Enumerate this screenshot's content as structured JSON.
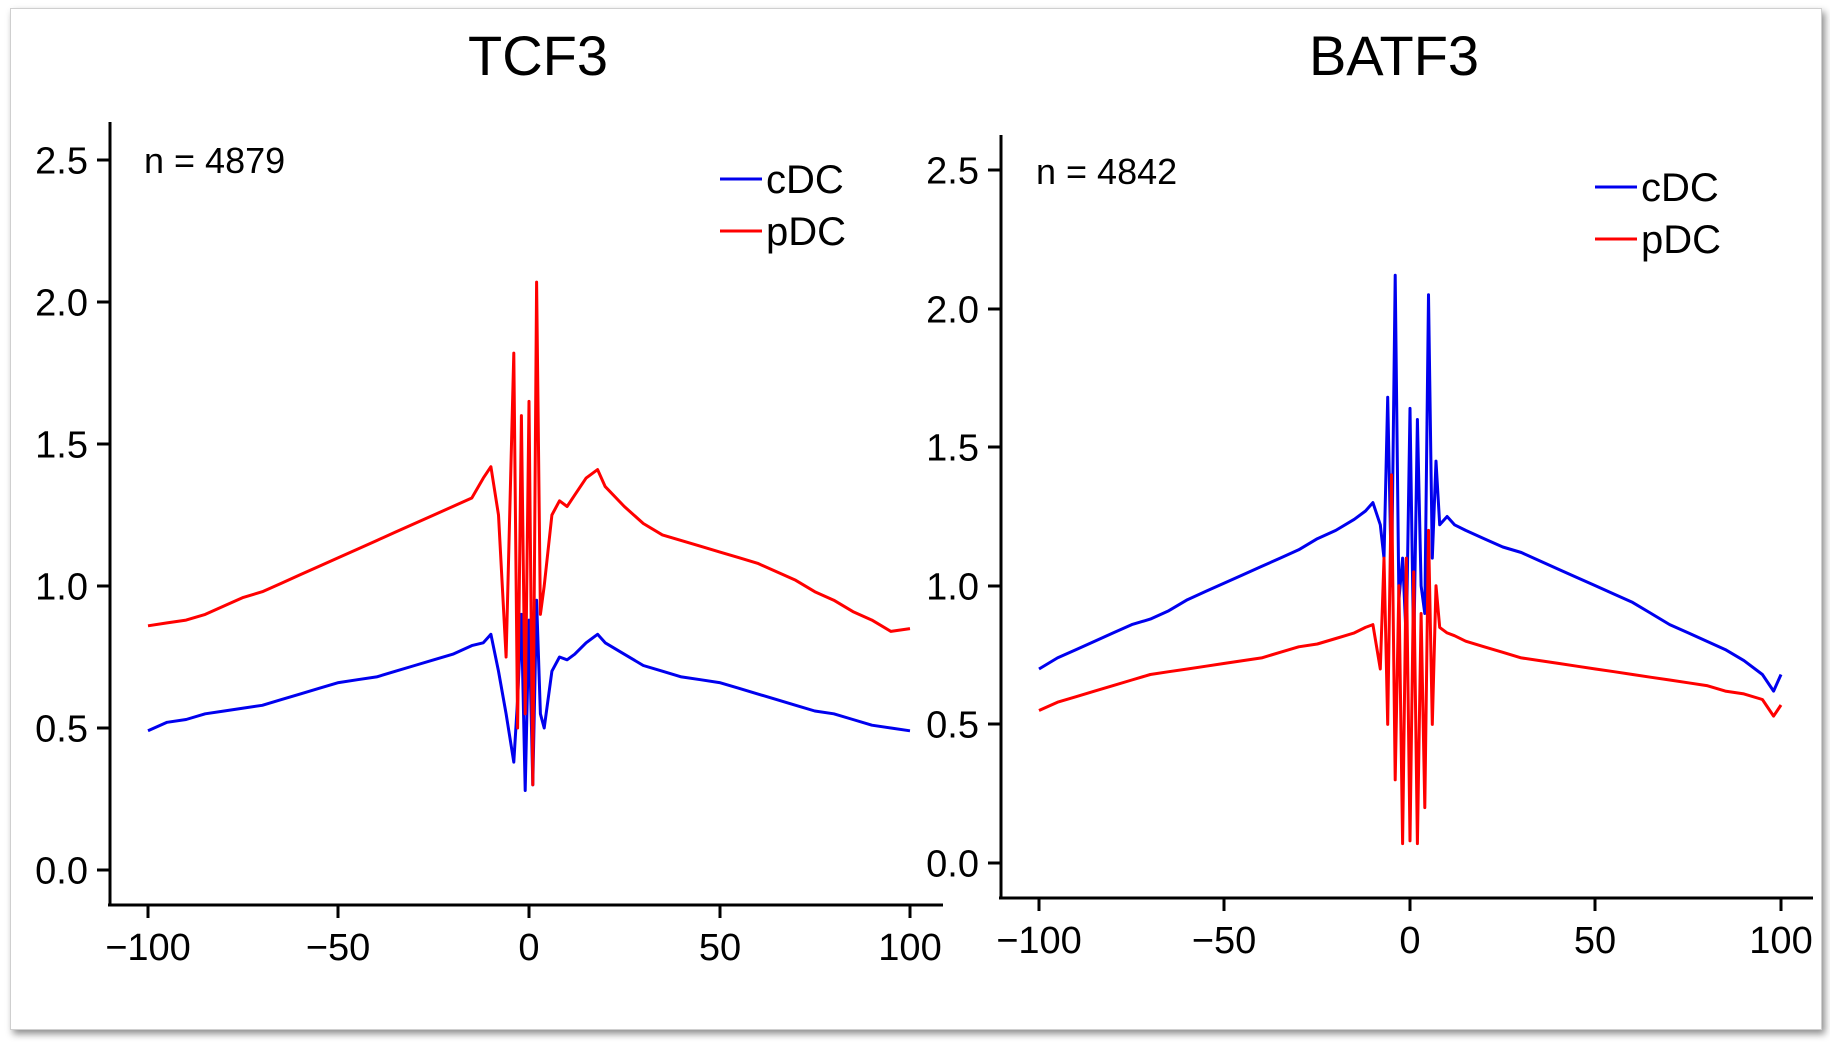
{
  "chart_data": [
    {
      "type": "line",
      "title": "TCF3",
      "annotation": "n = 4879",
      "xlabel": "",
      "ylabel": "",
      "xlim": [
        -100,
        100
      ],
      "ylim": [
        -0.12,
        2.6
      ],
      "x_ticks": [
        -100,
        -50,
        0,
        50,
        100
      ],
      "x_tick_labels": [
        "−100",
        "−50",
        "0",
        "50",
        "100"
      ],
      "y_ticks": [
        0.0,
        0.5,
        1.0,
        1.5,
        2.0,
        2.5
      ],
      "y_tick_labels": [
        "0.0",
        "0.5",
        "1.0",
        "1.5",
        "2.0",
        "2.5"
      ],
      "legend_position": "top-right",
      "grid": false,
      "series": [
        {
          "name": "cDC",
          "color": "#0000ee",
          "x": [
            -100,
            -95,
            -90,
            -85,
            -80,
            -75,
            -70,
            -65,
            -60,
            -55,
            -50,
            -45,
            -40,
            -35,
            -30,
            -25,
            -20,
            -15,
            -12,
            -10,
            -8,
            -6,
            -4,
            -3,
            -2,
            -1,
            0,
            1,
            2,
            3,
            4,
            6,
            8,
            10,
            12,
            15,
            18,
            20,
            25,
            30,
            35,
            40,
            45,
            50,
            55,
            60,
            65,
            70,
            75,
            80,
            85,
            90,
            95,
            100
          ],
          "y": [
            0.49,
            0.52,
            0.53,
            0.55,
            0.56,
            0.57,
            0.58,
            0.6,
            0.62,
            0.64,
            0.66,
            0.67,
            0.68,
            0.7,
            0.72,
            0.74,
            0.76,
            0.79,
            0.8,
            0.83,
            0.7,
            0.55,
            0.38,
            0.6,
            0.9,
            0.28,
            0.88,
            0.3,
            0.95,
            0.55,
            0.5,
            0.7,
            0.75,
            0.74,
            0.76,
            0.8,
            0.83,
            0.8,
            0.76,
            0.72,
            0.7,
            0.68,
            0.67,
            0.66,
            0.64,
            0.62,
            0.6,
            0.58,
            0.56,
            0.55,
            0.53,
            0.51,
            0.5,
            0.49
          ]
        },
        {
          "name": "pDC",
          "color": "#ff0000",
          "x": [
            -100,
            -95,
            -90,
            -85,
            -80,
            -75,
            -70,
            -65,
            -60,
            -55,
            -50,
            -45,
            -40,
            -35,
            -30,
            -25,
            -20,
            -15,
            -12,
            -10,
            -8,
            -6,
            -4,
            -3,
            -2,
            -1,
            0,
            1,
            2,
            3,
            4,
            6,
            8,
            10,
            12,
            15,
            18,
            20,
            25,
            30,
            35,
            40,
            45,
            50,
            55,
            60,
            65,
            70,
            75,
            80,
            85,
            90,
            95,
            100
          ],
          "y": [
            0.86,
            0.87,
            0.88,
            0.9,
            0.93,
            0.96,
            0.98,
            1.01,
            1.04,
            1.07,
            1.1,
            1.13,
            1.16,
            1.19,
            1.22,
            1.25,
            1.28,
            1.31,
            1.38,
            1.42,
            1.25,
            0.75,
            1.82,
            0.5,
            1.6,
            0.55,
            1.65,
            0.3,
            2.07,
            0.9,
            1.0,
            1.25,
            1.3,
            1.28,
            1.32,
            1.38,
            1.41,
            1.35,
            1.28,
            1.22,
            1.18,
            1.16,
            1.14,
            1.12,
            1.1,
            1.08,
            1.05,
            1.02,
            0.98,
            0.95,
            0.91,
            0.88,
            0.84,
            0.85
          ]
        }
      ]
    },
    {
      "type": "line",
      "title": "BATF3",
      "annotation": "n = 4842",
      "xlabel": "",
      "ylabel": "",
      "xlim": [
        -100,
        100
      ],
      "ylim": [
        -0.12,
        2.6
      ],
      "x_ticks": [
        -100,
        -50,
        0,
        50,
        100
      ],
      "x_tick_labels": [
        "−100",
        "−50",
        "0",
        "50",
        "100"
      ],
      "y_ticks": [
        0.0,
        0.5,
        1.0,
        1.5,
        2.0,
        2.5
      ],
      "y_tick_labels": [
        "0.0",
        "0.5",
        "1.0",
        "1.5",
        "2.0",
        "2.5"
      ],
      "legend_position": "top-right",
      "grid": false,
      "series": [
        {
          "name": "cDC",
          "color": "#0000ee",
          "x": [
            -100,
            -95,
            -90,
            -85,
            -80,
            -75,
            -70,
            -65,
            -60,
            -55,
            -50,
            -45,
            -40,
            -35,
            -30,
            -25,
            -20,
            -15,
            -12,
            -10,
            -8,
            -7,
            -6,
            -5,
            -4,
            -3,
            -2,
            -1,
            0,
            1,
            2,
            3,
            4,
            5,
            6,
            7,
            8,
            10,
            12,
            15,
            20,
            25,
            30,
            35,
            40,
            45,
            50,
            55,
            60,
            65,
            70,
            75,
            80,
            85,
            90,
            95,
            98,
            100
          ],
          "y": [
            0.7,
            0.74,
            0.77,
            0.8,
            0.83,
            0.86,
            0.88,
            0.91,
            0.95,
            0.98,
            1.01,
            1.04,
            1.07,
            1.1,
            1.13,
            1.17,
            1.2,
            1.24,
            1.27,
            1.3,
            1.22,
            1.1,
            1.68,
            1.0,
            2.12,
            0.95,
            1.1,
            0.8,
            1.64,
            0.75,
            1.6,
            1.0,
            0.9,
            2.05,
            1.1,
            1.45,
            1.22,
            1.25,
            1.22,
            1.2,
            1.17,
            1.14,
            1.12,
            1.09,
            1.06,
            1.03,
            1.0,
            0.97,
            0.94,
            0.9,
            0.86,
            0.83,
            0.8,
            0.77,
            0.73,
            0.68,
            0.62,
            0.68
          ]
        },
        {
          "name": "pDC",
          "color": "#ff0000",
          "x": [
            -100,
            -95,
            -90,
            -85,
            -80,
            -75,
            -70,
            -65,
            -60,
            -55,
            -50,
            -45,
            -40,
            -35,
            -30,
            -25,
            -20,
            -15,
            -12,
            -10,
            -8,
            -7,
            -6,
            -5,
            -4,
            -3,
            -2,
            -1,
            0,
            1,
            2,
            3,
            4,
            5,
            6,
            7,
            8,
            10,
            12,
            15,
            20,
            25,
            30,
            35,
            40,
            45,
            50,
            55,
            60,
            65,
            70,
            75,
            80,
            85,
            90,
            95,
            98,
            100
          ],
          "y": [
            0.55,
            0.58,
            0.6,
            0.62,
            0.64,
            0.66,
            0.68,
            0.69,
            0.7,
            0.71,
            0.72,
            0.73,
            0.74,
            0.76,
            0.78,
            0.79,
            0.81,
            0.83,
            0.85,
            0.86,
            0.7,
            1.1,
            0.5,
            1.4,
            0.3,
            1.0,
            0.07,
            1.1,
            0.08,
            1.05,
            0.07,
            0.9,
            0.2,
            1.2,
            0.5,
            1.0,
            0.85,
            0.83,
            0.82,
            0.8,
            0.78,
            0.76,
            0.74,
            0.73,
            0.72,
            0.71,
            0.7,
            0.69,
            0.68,
            0.67,
            0.66,
            0.65,
            0.64,
            0.62,
            0.61,
            0.59,
            0.53,
            0.57
          ]
        }
      ]
    }
  ]
}
